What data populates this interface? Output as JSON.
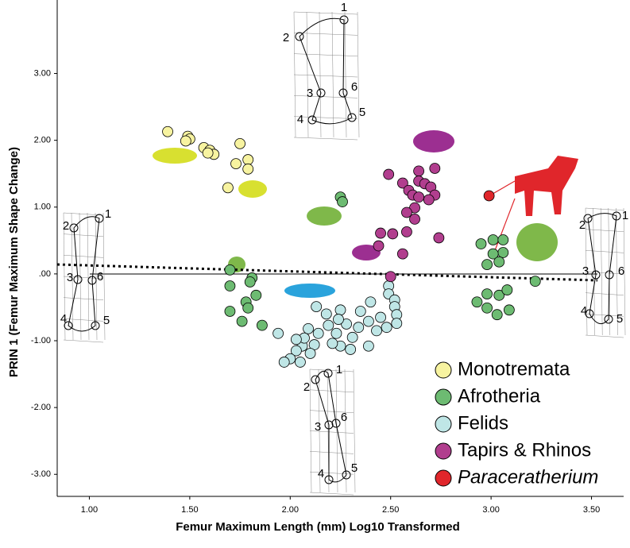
{
  "chart_data": {
    "type": "scatter",
    "x_label": "Femur Maximum Length (mm) Log10 Transformed",
    "y_label": "PRIN 1 (Femur Maximum Shape Change)",
    "xlim": [
      0.84,
      3.66
    ],
    "ylim": [
      -3.33,
      4.1
    ],
    "xticks": [
      {
        "value": 1,
        "label": "1.00"
      },
      {
        "value": 1.5,
        "label": "1.50"
      },
      {
        "value": 2,
        "label": "2.00"
      },
      {
        "value": 2.5,
        "label": "2.50"
      },
      {
        "value": 3,
        "label": "3.00"
      },
      {
        "value": 3.5,
        "label": "3.50"
      }
    ],
    "yticks": [
      {
        "value": 3,
        "label": "3.00"
      },
      {
        "value": 2,
        "label": "2.00"
      },
      {
        "value": 1,
        "label": "1.00"
      },
      {
        "value": 0,
        "label": ".00"
      },
      {
        "value": -1,
        "label": "-1.00"
      },
      {
        "value": -2,
        "label": "-2.00"
      },
      {
        "value": -3,
        "label": "-3.00"
      }
    ],
    "landmark_labels": [
      "1",
      "2",
      "3",
      "4",
      "5",
      "6"
    ],
    "series": [
      {
        "name": "Monotremata",
        "color": "#f7f3a0",
        "x": [
          1.39,
          1.49,
          1.5,
          1.48,
          1.57,
          1.6,
          1.62,
          1.59,
          1.75,
          1.73,
          1.79,
          1.79,
          1.69
        ],
        "values": [
          2.13,
          2.06,
          2.02,
          1.99,
          1.89,
          1.85,
          1.79,
          1.81,
          1.95,
          1.65,
          1.71,
          1.57,
          1.29
        ]
      },
      {
        "name": "Afrotheria",
        "color": "#6dbb72",
        "x": [
          2.25,
          2.26,
          1.7,
          1.81,
          1.7,
          1.8,
          1.83,
          1.78,
          1.7,
          1.79,
          1.76,
          1.86,
          2.95,
          3.01,
          3.06,
          3.06,
          3.01,
          3.04,
          2.98,
          2.93,
          2.98,
          3.04,
          3.08,
          2.98,
          3.03,
          3.09,
          3.22
        ],
        "values": [
          1.15,
          1.08,
          0.06,
          -0.06,
          -0.18,
          -0.12,
          -0.32,
          -0.42,
          -0.56,
          -0.51,
          -0.71,
          -0.77,
          0.45,
          0.51,
          0.51,
          0.32,
          0.3,
          0.18,
          0.14,
          -0.42,
          -0.3,
          -0.32,
          -0.24,
          -0.51,
          -0.61,
          -0.54,
          -0.11
        ]
      },
      {
        "name": "Felids",
        "color": "#bfe6e6",
        "x": [
          2.49,
          2.49,
          2.52,
          2.52,
          2.53,
          2.53,
          2.4,
          2.35,
          2.39,
          2.34,
          2.45,
          2.43,
          2.48,
          2.39,
          2.31,
          2.28,
          2.25,
          2.24,
          2.18,
          2.19,
          2.14,
          2.23,
          2.25,
          2.3,
          2.21,
          2.12,
          2.1,
          2.06,
          2.03,
          2.07,
          2.0,
          1.97,
          2.05,
          2.09,
          2.13,
          2.03,
          1.94
        ],
        "values": [
          -0.18,
          -0.3,
          -0.39,
          -0.49,
          -0.61,
          -0.74,
          -0.42,
          -0.56,
          -0.71,
          -0.8,
          -0.65,
          -0.85,
          -0.8,
          -1.08,
          -0.95,
          -0.75,
          -0.54,
          -0.68,
          -0.6,
          -0.77,
          -0.89,
          -0.89,
          -1.08,
          -1.13,
          -1.04,
          -1.06,
          -1.19,
          -1.08,
          -1.15,
          -0.96,
          -1.27,
          -1.32,
          -1.32,
          -0.82,
          -0.49,
          -0.98,
          -0.89
        ]
      },
      {
        "name": "Tapirs & Rhinos",
        "color": "#b13e8e",
        "x": [
          2.64,
          2.64,
          2.72,
          2.49,
          2.56,
          2.59,
          2.61,
          2.67,
          2.7,
          2.72,
          2.69,
          2.64,
          2.62,
          2.58,
          2.62,
          2.45,
          2.51,
          2.58,
          2.74,
          2.44,
          2.56,
          2.5
        ],
        "values": [
          1.54,
          1.39,
          1.58,
          1.49,
          1.36,
          1.25,
          1.18,
          1.35,
          1.3,
          1.18,
          1.11,
          1.15,
          0.99,
          0.92,
          0.82,
          0.61,
          0.6,
          0.63,
          0.54,
          0.42,
          0.3,
          -0.04
        ]
      },
      {
        "name": "Paraceratherium",
        "color": "#e0262b",
        "italic": true,
        "x": [
          2.99
        ],
        "values": [
          1.17
        ]
      }
    ]
  }
}
